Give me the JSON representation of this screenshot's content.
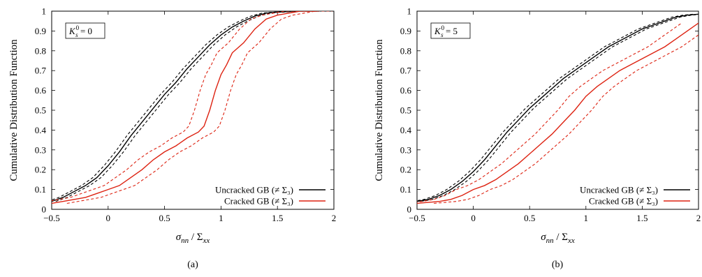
{
  "chart_data": [
    {
      "type": "line",
      "caption": "(a)",
      "annotation": {
        "base": "K",
        "sup": "0",
        "sub": "s",
        "suffix": " = 0"
      },
      "xlabel": {
        "main": "σ",
        "main_sub": "nn",
        "sep": " / ",
        "denom": "Σ",
        "denom_sub": "xx"
      },
      "ylabel": "Cumulative Distribution Function",
      "xlim": [
        -0.5,
        2
      ],
      "ylim": [
        0,
        1
      ],
      "xticks": [
        "-0.5",
        "0",
        "0.5",
        "1",
        "1.5",
        "2"
      ],
      "yticks": [
        "0",
        "0.1",
        "0.2",
        "0.3",
        "0.4",
        "0.5",
        "0.6",
        "0.7",
        "0.8",
        "0.9",
        "1"
      ],
      "legend_position": "bottom-right",
      "series": [
        {
          "name": "Uncracked GB (≠ Σ₃)",
          "color": "#000000",
          "band": 0.012,
          "x": [
            -0.5,
            -0.4,
            -0.3,
            -0.2,
            -0.1,
            0,
            0.1,
            0.2,
            0.3,
            0.4,
            0.5,
            0.6,
            0.7,
            0.8,
            0.9,
            1.0,
            1.1,
            1.2,
            1.3,
            1.4,
            1.5,
            1.6,
            1.7,
            1.8,
            1.87
          ],
          "y": [
            0.04,
            0.06,
            0.09,
            0.12,
            0.16,
            0.22,
            0.29,
            0.37,
            0.44,
            0.51,
            0.58,
            0.64,
            0.71,
            0.77,
            0.83,
            0.88,
            0.92,
            0.95,
            0.975,
            0.99,
            0.995,
            0.998,
            1.0,
            1.0,
            1.0
          ]
        },
        {
          "name": "Cracked GB (≠ Σ₃)",
          "color": "#dd2211",
          "band": 0.045,
          "x": [
            -0.5,
            -0.4,
            -0.3,
            -0.2,
            -0.1,
            0,
            0.1,
            0.2,
            0.3,
            0.4,
            0.5,
            0.6,
            0.7,
            0.8,
            0.85,
            0.9,
            0.95,
            1.0,
            1.05,
            1.1,
            1.2,
            1.3,
            1.4,
            1.5,
            1.6,
            1.7,
            1.8,
            1.85
          ],
          "y": [
            0.03,
            0.04,
            0.05,
            0.06,
            0.08,
            0.1,
            0.12,
            0.16,
            0.2,
            0.25,
            0.29,
            0.32,
            0.36,
            0.39,
            0.42,
            0.5,
            0.6,
            0.68,
            0.73,
            0.79,
            0.84,
            0.91,
            0.96,
            0.98,
            0.99,
            1.0,
            1.0,
            1.0
          ]
        }
      ]
    },
    {
      "type": "line",
      "caption": "(b)",
      "annotation": {
        "base": "K",
        "sup": "0",
        "sub": "s",
        "suffix": " = 5"
      },
      "xlabel": {
        "main": "σ",
        "main_sub": "nn",
        "sep": " / ",
        "denom": "Σ",
        "denom_sub": "xx"
      },
      "ylabel": "Cumulative Distribution Function",
      "xlim": [
        -0.5,
        2
      ],
      "ylim": [
        0,
        1
      ],
      "xticks": [
        "-0.5",
        "0",
        "0.5",
        "1",
        "1.5",
        "2"
      ],
      "yticks": [
        "0",
        "0.1",
        "0.2",
        "0.3",
        "0.4",
        "0.5",
        "0.6",
        "0.7",
        "0.8",
        "0.9",
        "1"
      ],
      "legend_position": "bottom-right",
      "series": [
        {
          "name": "Uncracked GB (≠ Σ₃)",
          "color": "#000000",
          "band": 0.012,
          "x": [
            -0.5,
            -0.4,
            -0.3,
            -0.2,
            -0.1,
            0,
            0.1,
            0.2,
            0.3,
            0.4,
            0.5,
            0.6,
            0.7,
            0.8,
            0.9,
            1.0,
            1.1,
            1.2,
            1.3,
            1.4,
            1.5,
            1.6,
            1.7,
            1.8,
            1.9,
            2.0
          ],
          "y": [
            0.04,
            0.05,
            0.07,
            0.1,
            0.14,
            0.19,
            0.25,
            0.32,
            0.39,
            0.45,
            0.51,
            0.56,
            0.61,
            0.66,
            0.7,
            0.74,
            0.78,
            0.82,
            0.85,
            0.88,
            0.91,
            0.93,
            0.95,
            0.97,
            0.98,
            0.985
          ]
        },
        {
          "name": "Cracked GB (≠ Σ₃)",
          "color": "#dd2211",
          "band": 0.05,
          "x": [
            -0.5,
            -0.4,
            -0.3,
            -0.2,
            -0.1,
            0,
            0.1,
            0.2,
            0.3,
            0.4,
            0.5,
            0.6,
            0.7,
            0.8,
            0.9,
            1.0,
            1.1,
            1.2,
            1.3,
            1.4,
            1.5,
            1.6,
            1.7,
            1.8,
            1.9,
            2.0
          ],
          "y": [
            0.03,
            0.035,
            0.04,
            0.05,
            0.07,
            0.1,
            0.12,
            0.15,
            0.19,
            0.23,
            0.28,
            0.33,
            0.38,
            0.44,
            0.5,
            0.57,
            0.62,
            0.66,
            0.7,
            0.73,
            0.76,
            0.79,
            0.82,
            0.86,
            0.9,
            0.94
          ]
        }
      ]
    }
  ]
}
